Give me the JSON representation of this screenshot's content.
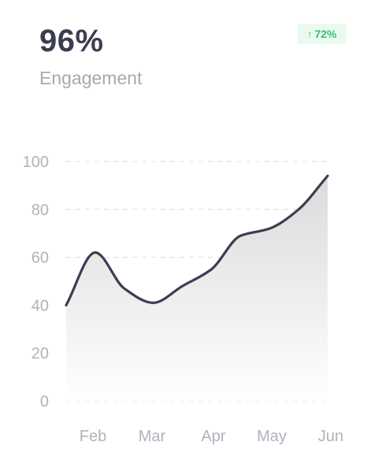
{
  "summary": {
    "value": "96%",
    "label": "Engagement",
    "change": "72%",
    "change_icon": "arrow-up-icon",
    "change_color": "#38c172"
  },
  "chart_data": {
    "type": "area",
    "title": "",
    "xlabel": "",
    "ylabel": "",
    "x_ticks": [
      "Feb",
      "Mar",
      "Apr",
      "May",
      "Jun"
    ],
    "y_ticks": [
      0,
      20,
      40,
      60,
      80,
      100
    ],
    "ylim": [
      0,
      100
    ],
    "grid": "horizontal-dashed",
    "line_color": "#3c3d52",
    "fill_color": "#e2e2e2",
    "series": [
      {
        "values": [
          40,
          62,
          47,
          41,
          48,
          55,
          69,
          72,
          80,
          94
        ]
      }
    ]
  }
}
